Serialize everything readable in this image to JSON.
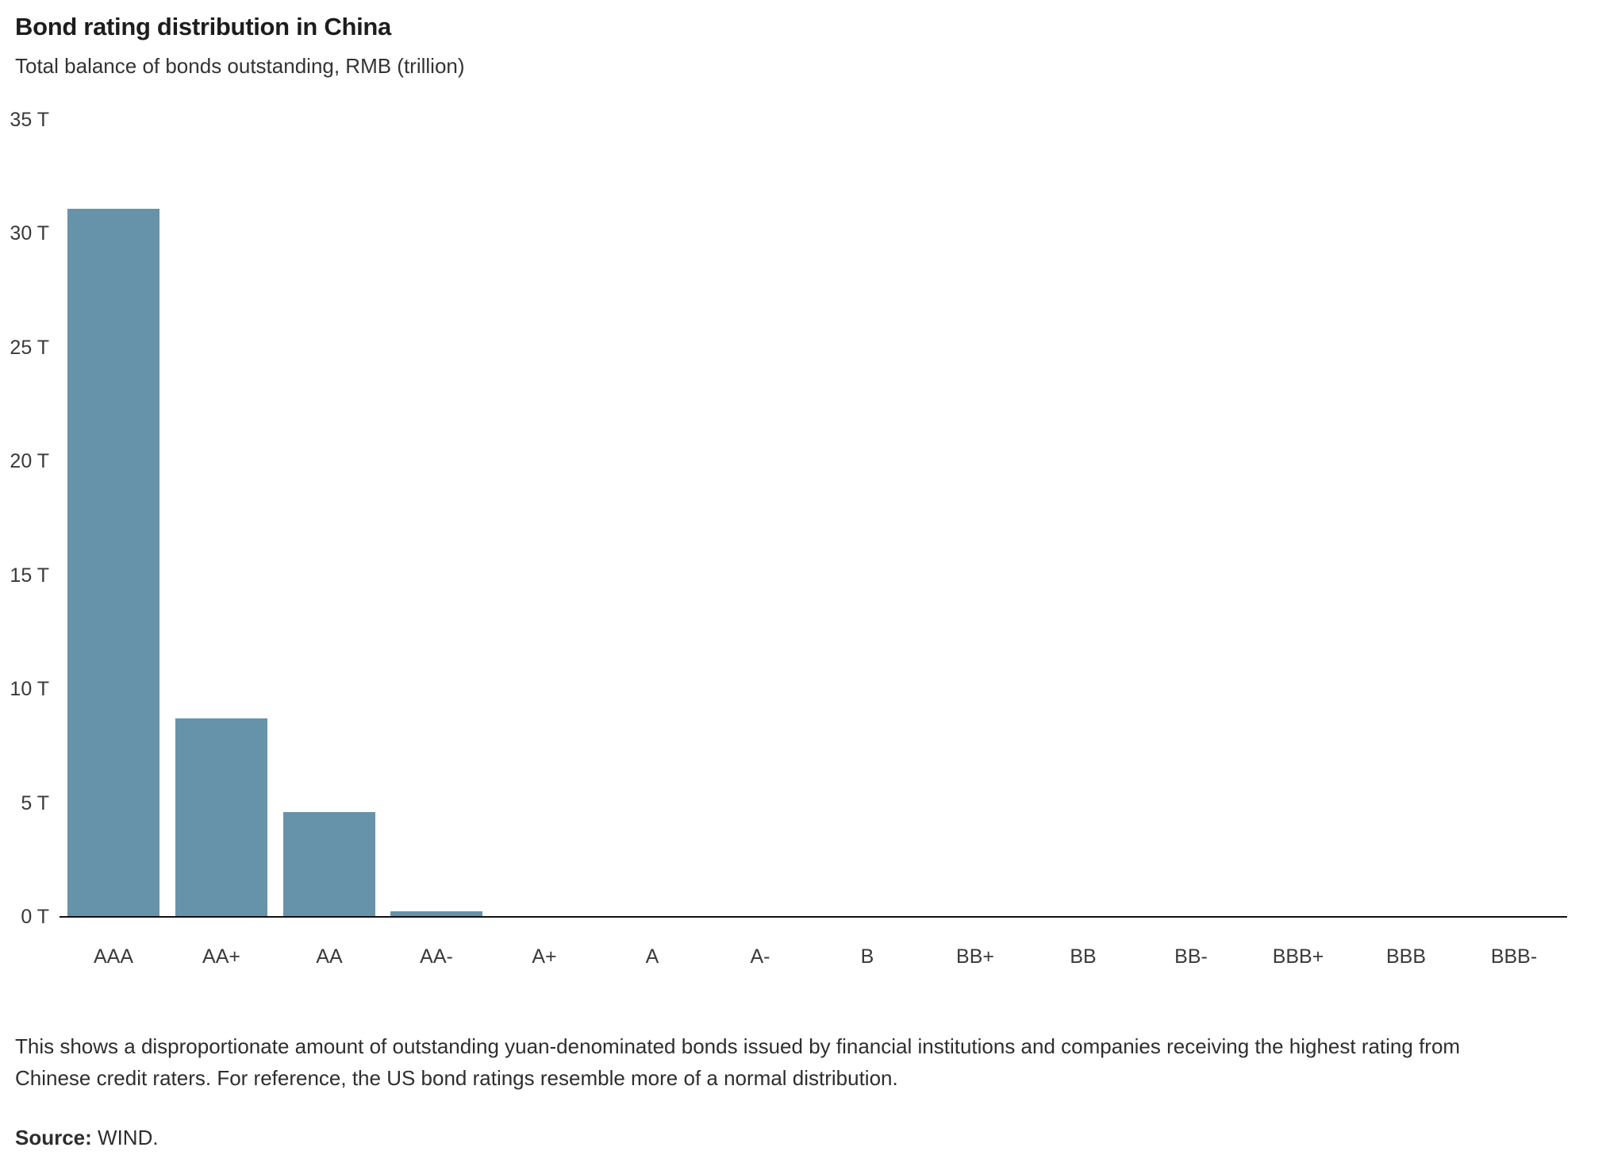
{
  "header": {
    "title": "Bond rating distribution in China",
    "subtitle": "Total balance of bonds outstanding, RMB (trillion)"
  },
  "chart_data": {
    "type": "bar",
    "title": "Bond rating distribution in China",
    "subtitle": "Total balance of bonds outstanding, RMB (trillion)",
    "categories": [
      "AAA",
      "AA+",
      "AA",
      "AA-",
      "A+",
      "A",
      "A-",
      "B",
      "BB+",
      "BB",
      "BB-",
      "BBB+",
      "BBB",
      "BBB-"
    ],
    "values": [
      31.1,
      8.7,
      4.6,
      0.25,
      0.05,
      0,
      0,
      0,
      0,
      0,
      0,
      0,
      0,
      0
    ],
    "xlabel": "",
    "ylabel": "",
    "ylim": [
      0,
      35
    ],
    "ytick_step": 5,
    "ytick_suffix": " T",
    "ytick_labels": [
      "0 T",
      "5 T",
      "10 T",
      "15 T",
      "20 T",
      "25 T",
      "30 T",
      "35 T"
    ],
    "grid": false,
    "legend": false,
    "bar_color": "#6793aa",
    "axis_color": "#111111"
  },
  "footer": {
    "note": "This shows a disproportionate amount of outstanding yuan-denominated bonds issued by financial institutions and companies receiving the highest rating from Chinese credit raters. For reference, the US bond ratings resemble more of a normal distribution.",
    "source_label": "Source:",
    "source_value": " WIND."
  },
  "colors": {
    "bar": "#6793aa",
    "axis": "#111111",
    "title_text": "#1d1d1d",
    "body_text": "#2e2e2e",
    "background": "#ffffff"
  }
}
